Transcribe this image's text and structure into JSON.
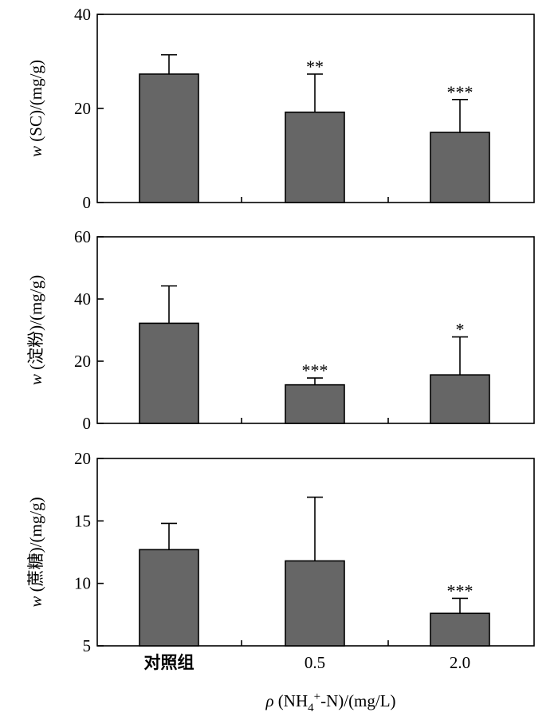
{
  "chart_data": [
    {
      "type": "bar",
      "categories": [
        "对照组",
        "0.5",
        "2.0"
      ],
      "values": [
        27.3,
        19.2,
        14.9
      ],
      "errors": [
        4.1,
        8.1,
        7.0
      ],
      "significance": [
        "",
        "**",
        "***"
      ],
      "ylabel_var": "w",
      "ylabel_rest": " (SC)/(mg/g)",
      "ylim": [
        0,
        40
      ],
      "yticks": [
        "0",
        "20",
        "40"
      ],
      "bar_color": "#666666"
    },
    {
      "type": "bar",
      "categories": [
        "对照组",
        "0.5",
        "2.0"
      ],
      "values": [
        32.2,
        12.4,
        15.6
      ],
      "errors": [
        12.0,
        2.2,
        12.2
      ],
      "significance": [
        "",
        "***",
        "*"
      ],
      "ylabel_var": "w",
      "ylabel_rest": " (淀粉)/(mg/g)",
      "ylim": [
        0,
        60
      ],
      "yticks": [
        "0",
        "20",
        "40",
        "60"
      ],
      "bar_color": "#666666"
    },
    {
      "type": "bar",
      "categories": [
        "对照组",
        "0.5",
        "2.0"
      ],
      "values": [
        12.7,
        11.8,
        7.6
      ],
      "errors": [
        2.1,
        5.1,
        1.2
      ],
      "significance": [
        "",
        "",
        "***"
      ],
      "ylabel_var": "w",
      "ylabel_rest": " (蔗糖)/(mg/g)",
      "ylim": [
        5,
        20
      ],
      "yticks": [
        "5",
        "10",
        "15",
        "20"
      ],
      "bar_color": "#666666"
    }
  ],
  "xaxis": {
    "var": "ρ",
    "rest_a": " (NH",
    "sub": "4",
    "sup": "+",
    "rest_b": "-N)/(mg/L)"
  }
}
